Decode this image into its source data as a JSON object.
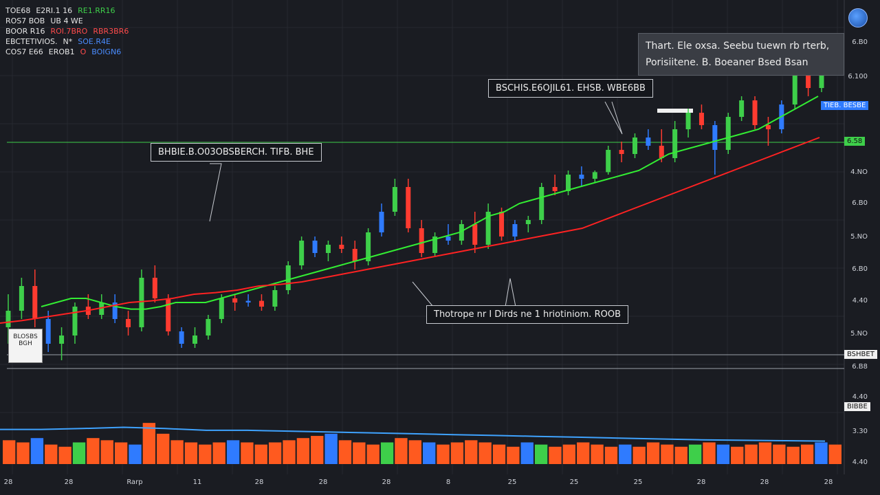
{
  "legend": {
    "rows": [
      [
        "TOE68",
        "E2RI.1 16",
        "RE1.RR16"
      ],
      [
        "ROS7 BOB",
        "UB 4 WE"
      ],
      [
        "BOOR R16",
        "ROI.7BRO",
        "RBR3BR6"
      ],
      [
        "EBCTETIVIOS.",
        "N*",
        "SOE.R4E"
      ],
      [
        "COS7 E66",
        "EROB1",
        "O",
        "BOIGN6"
      ]
    ]
  },
  "callouts": {
    "info_line1": "Thart. Ele oxsa. Seebu tuewn rb rterb,",
    "info_line2": "Porisiitene. B. Boeaner Bsed Bsan",
    "top": "BSCHIS.E6OJIL61. EHSB. WBE6BB",
    "left": "BHBIE.B.O03OBSBERCH. TIFB. BHE",
    "bottom": "Thotrope nr I Dirds ne 1 hriotiniom. ROOB"
  },
  "side_box": {
    "label1": "BLOSBS",
    "label2": "BGH"
  },
  "price_tags": {
    "blue": "TIEB. BESBE",
    "green": "6.58",
    "white": "BSHBET",
    "white2": "BIBBE"
  },
  "chart_data": {
    "type": "candlestick",
    "y_axis_labels": [
      "6.B0",
      "6.100",
      "4.NO",
      "6.B0",
      "5.NO",
      "6.B0",
      "4.40",
      "5.NO",
      "6.B8",
      "4.40",
      "3.30",
      "4.40"
    ],
    "x_axis_labels": [
      "28",
      "28",
      "Rarp",
      "11",
      "28",
      "28",
      "28",
      "8",
      "25",
      "25",
      "25",
      "28",
      "28",
      "28"
    ],
    "candles": [
      {
        "o": 5.2,
        "h": 5.6,
        "l": 5.0,
        "c": 5.4
      },
      {
        "o": 5.4,
        "h": 5.8,
        "l": 5.3,
        "c": 5.7
      },
      {
        "o": 5.7,
        "h": 5.9,
        "l": 5.2,
        "c": 5.3
      },
      {
        "o": 5.3,
        "h": 5.4,
        "l": 4.9,
        "c": 5.0
      },
      {
        "o": 5.0,
        "h": 5.2,
        "l": 4.8,
        "c": 5.1
      },
      {
        "o": 5.1,
        "h": 5.5,
        "l": 5.0,
        "c": 5.45
      },
      {
        "o": 5.45,
        "h": 5.6,
        "l": 5.3,
        "c": 5.35
      },
      {
        "o": 5.35,
        "h": 5.6,
        "l": 5.3,
        "c": 5.5
      },
      {
        "o": 5.5,
        "h": 5.6,
        "l": 5.25,
        "c": 5.3
      },
      {
        "o": 5.3,
        "h": 5.4,
        "l": 5.1,
        "c": 5.2
      },
      {
        "o": 5.2,
        "h": 5.9,
        "l": 5.15,
        "c": 5.8
      },
      {
        "o": 5.8,
        "h": 5.95,
        "l": 5.5,
        "c": 5.55
      },
      {
        "o": 5.55,
        "h": 5.6,
        "l": 5.1,
        "c": 5.15
      },
      {
        "o": 5.15,
        "h": 5.2,
        "l": 4.95,
        "c": 5.0
      },
      {
        "o": 5.0,
        "h": 5.2,
        "l": 4.95,
        "c": 5.1
      },
      {
        "o": 5.1,
        "h": 5.35,
        "l": 5.05,
        "c": 5.3
      },
      {
        "o": 5.3,
        "h": 5.6,
        "l": 5.25,
        "c": 5.55
      },
      {
        "o": 5.55,
        "h": 5.6,
        "l": 5.4,
        "c": 5.5
      },
      {
        "o": 5.5,
        "h": 5.6,
        "l": 5.45,
        "c": 5.52
      },
      {
        "o": 5.52,
        "h": 5.6,
        "l": 5.4,
        "c": 5.45
      },
      {
        "o": 5.45,
        "h": 5.7,
        "l": 5.4,
        "c": 5.65
      },
      {
        "o": 5.65,
        "h": 6.0,
        "l": 5.6,
        "c": 5.95
      },
      {
        "o": 5.95,
        "h": 6.3,
        "l": 5.9,
        "c": 6.25
      },
      {
        "o": 6.25,
        "h": 6.3,
        "l": 6.05,
        "c": 6.1
      },
      {
        "o": 6.1,
        "h": 6.25,
        "l": 6.0,
        "c": 6.2
      },
      {
        "o": 6.2,
        "h": 6.3,
        "l": 6.1,
        "c": 6.15
      },
      {
        "o": 6.15,
        "h": 6.25,
        "l": 5.9,
        "c": 6.0
      },
      {
        "o": 6.0,
        "h": 6.4,
        "l": 5.95,
        "c": 6.35
      },
      {
        "o": 6.35,
        "h": 6.7,
        "l": 6.3,
        "c": 6.6
      },
      {
        "o": 6.6,
        "h": 7.0,
        "l": 6.55,
        "c": 6.9
      },
      {
        "o": 6.9,
        "h": 7.0,
        "l": 6.35,
        "c": 6.4
      },
      {
        "o": 6.4,
        "h": 6.5,
        "l": 6.05,
        "c": 6.1
      },
      {
        "o": 6.1,
        "h": 6.35,
        "l": 6.05,
        "c": 6.3
      },
      {
        "o": 6.3,
        "h": 6.45,
        "l": 6.2,
        "c": 6.25
      },
      {
        "o": 6.25,
        "h": 6.5,
        "l": 6.2,
        "c": 6.45
      },
      {
        "o": 6.45,
        "h": 6.6,
        "l": 6.1,
        "c": 6.2
      },
      {
        "o": 6.2,
        "h": 6.7,
        "l": 6.15,
        "c": 6.6
      },
      {
        "o": 6.6,
        "h": 6.65,
        "l": 6.25,
        "c": 6.3
      },
      {
        "o": 6.3,
        "h": 6.5,
        "l": 6.25,
        "c": 6.45
      },
      {
        "o": 6.45,
        "h": 6.55,
        "l": 6.35,
        "c": 6.5
      },
      {
        "o": 6.5,
        "h": 6.95,
        "l": 6.45,
        "c": 6.9
      },
      {
        "o": 6.9,
        "h": 7.05,
        "l": 6.8,
        "c": 6.85
      },
      {
        "o": 6.85,
        "h": 7.1,
        "l": 6.8,
        "c": 7.05
      },
      {
        "o": 7.05,
        "h": 7.15,
        "l": 6.9,
        "c": 7.0
      },
      {
        "o": 7.0,
        "h": 7.1,
        "l": 6.95,
        "c": 7.08
      },
      {
        "o": 7.08,
        "h": 7.4,
        "l": 7.05,
        "c": 7.35
      },
      {
        "o": 7.35,
        "h": 7.45,
        "l": 7.2,
        "c": 7.3
      },
      {
        "o": 7.3,
        "h": 7.55,
        "l": 7.25,
        "c": 7.5
      },
      {
        "o": 7.5,
        "h": 7.6,
        "l": 7.35,
        "c": 7.4
      },
      {
        "o": 7.4,
        "h": 7.6,
        "l": 7.2,
        "c": 7.25
      },
      {
        "o": 7.25,
        "h": 7.7,
        "l": 7.2,
        "c": 7.6
      },
      {
        "o": 7.6,
        "h": 7.85,
        "l": 7.5,
        "c": 7.8
      },
      {
        "o": 7.8,
        "h": 7.9,
        "l": 7.6,
        "c": 7.65
      },
      {
        "o": 7.65,
        "h": 7.7,
        "l": 7.05,
        "c": 7.35
      },
      {
        "o": 7.35,
        "h": 7.8,
        "l": 7.3,
        "c": 7.75
      },
      {
        "o": 7.75,
        "h": 8.0,
        "l": 7.7,
        "c": 7.95
      },
      {
        "o": 7.95,
        "h": 8.0,
        "l": 7.6,
        "c": 7.65
      },
      {
        "o": 7.65,
        "h": 7.75,
        "l": 7.4,
        "c": 7.6
      },
      {
        "o": 7.6,
        "h": 7.95,
        "l": 7.55,
        "c": 7.9
      },
      {
        "o": 7.9,
        "h": 8.5,
        "l": 7.85,
        "c": 8.45
      },
      {
        "o": 8.45,
        "h": 8.55,
        "l": 8.0,
        "c": 8.1
      },
      {
        "o": 8.1,
        "h": 8.5,
        "l": 8.05,
        "c": 8.4
      }
    ],
    "ma_green": [
      5.45,
      5.5,
      5.55,
      5.55,
      5.5,
      5.45,
      5.42,
      5.42,
      5.45,
      5.5,
      5.5,
      5.5,
      5.55,
      5.6,
      5.65,
      5.7,
      5.75,
      5.8,
      5.85,
      5.9,
      5.95,
      6.0,
      6.05,
      6.1,
      6.15,
      6.2,
      6.25,
      6.3,
      6.35,
      6.45,
      6.55,
      6.6,
      6.7,
      6.75,
      6.8,
      6.85,
      6.9,
      6.95,
      7.0,
      7.05,
      7.1,
      7.2,
      7.3,
      7.35,
      7.4,
      7.45,
      7.5,
      7.55,
      7.6,
      7.7,
      7.8,
      7.9,
      8.0
    ],
    "ma_red": [
      5.25,
      5.28,
      5.32,
      5.36,
      5.4,
      5.45,
      5.5,
      5.52,
      5.55,
      5.6,
      5.62,
      5.65,
      5.7,
      5.72,
      5.75,
      5.8,
      5.85,
      5.9,
      5.95,
      6.0,
      6.05,
      6.1,
      6.15,
      6.2,
      6.25,
      6.3,
      6.35,
      6.4,
      6.5,
      6.6,
      6.7,
      6.8,
      6.9,
      7.0,
      7.1,
      7.2,
      7.3,
      7.4,
      7.5
    ],
    "volume": [
      0.55,
      0.5,
      0.6,
      0.45,
      0.4,
      0.5,
      0.6,
      0.55,
      0.5,
      0.45,
      0.95,
      0.7,
      0.55,
      0.5,
      0.45,
      0.5,
      0.55,
      0.5,
      0.45,
      0.5,
      0.55,
      0.6,
      0.65,
      0.7,
      0.55,
      0.5,
      0.45,
      0.5,
      0.6,
      0.55,
      0.5,
      0.45,
      0.5,
      0.55,
      0.5,
      0.45,
      0.4,
      0.5,
      0.45,
      0.4,
      0.45,
      0.5,
      0.45,
      0.4,
      0.45,
      0.4,
      0.5,
      0.45,
      0.4,
      0.45,
      0.5,
      0.45,
      0.4,
      0.45,
      0.5,
      0.45,
      0.4,
      0.45,
      0.5,
      0.45
    ],
    "volume_line": [
      0.8,
      0.8,
      0.82,
      0.85,
      0.82,
      0.78,
      0.78,
      0.76,
      0.74,
      0.72,
      0.7,
      0.68,
      0.66,
      0.64,
      0.62,
      0.6,
      0.58,
      0.56,
      0.55,
      0.54,
      0.53
    ],
    "y_range": [
      4.5,
      9.0
    ]
  },
  "colors": {
    "bg": "#1a1c22",
    "up": "#3ecf4a",
    "down": "#ff3b30",
    "blue": "#2f7bff",
    "ma_green": "#33ee33",
    "ma_red": "#ff2222",
    "grid": "#262930",
    "volume": "#ff5a1f"
  }
}
